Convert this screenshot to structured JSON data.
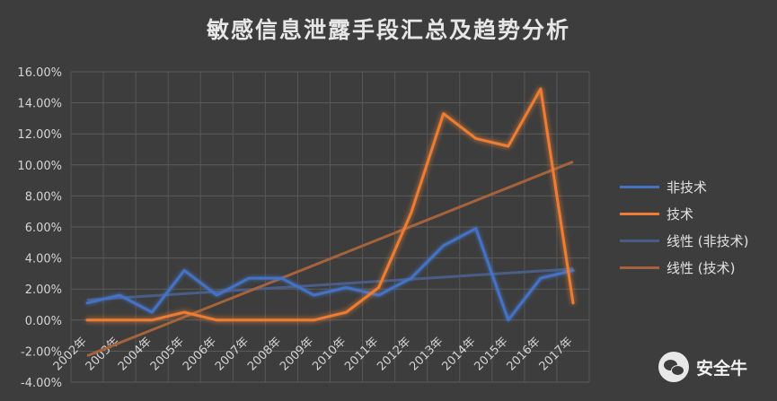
{
  "chart_data": {
    "type": "line",
    "title": "敏感信息泄露手段汇总及趋势分析",
    "categories": [
      "2002年",
      "2003年",
      "2004年",
      "2005年",
      "2006年",
      "2007年",
      "2008年",
      "2009年",
      "2010年",
      "2011年",
      "2012年",
      "2013年",
      "2014年",
      "2015年",
      "2016年",
      "2017年"
    ],
    "series": [
      {
        "name": "非技术",
        "color": "#4472c4",
        "values": [
          1.1,
          1.6,
          0.5,
          3.2,
          1.6,
          2.7,
          2.7,
          1.6,
          2.1,
          1.6,
          2.7,
          4.8,
          5.9,
          0.0,
          2.7,
          3.2
        ]
      },
      {
        "name": "技术",
        "color": "#ed7d31",
        "values": [
          0.0,
          0.0,
          0.0,
          0.5,
          0.0,
          0.0,
          0.0,
          0.0,
          0.5,
          2.1,
          6.9,
          13.3,
          11.7,
          11.2,
          14.9,
          1.1
        ]
      }
    ],
    "trendlines": [
      {
        "name": "线性 (非技术)",
        "color": "#4a5d86",
        "start": 1.3,
        "end": 3.3
      },
      {
        "name": "线性 (技术)",
        "color": "#a5633c",
        "start": -2.3,
        "end": 10.2
      }
    ],
    "y_ticks": [
      "-4.00%",
      "-2.00%",
      "0.00%",
      "2.00%",
      "4.00%",
      "6.00%",
      "8.00%",
      "10.00%",
      "12.00%",
      "14.00%",
      "16.00%"
    ],
    "ylim": [
      -4,
      16
    ],
    "grid": true,
    "legend_position": "right"
  },
  "watermark": {
    "icon": "wechat-icon",
    "text": "安全牛"
  }
}
